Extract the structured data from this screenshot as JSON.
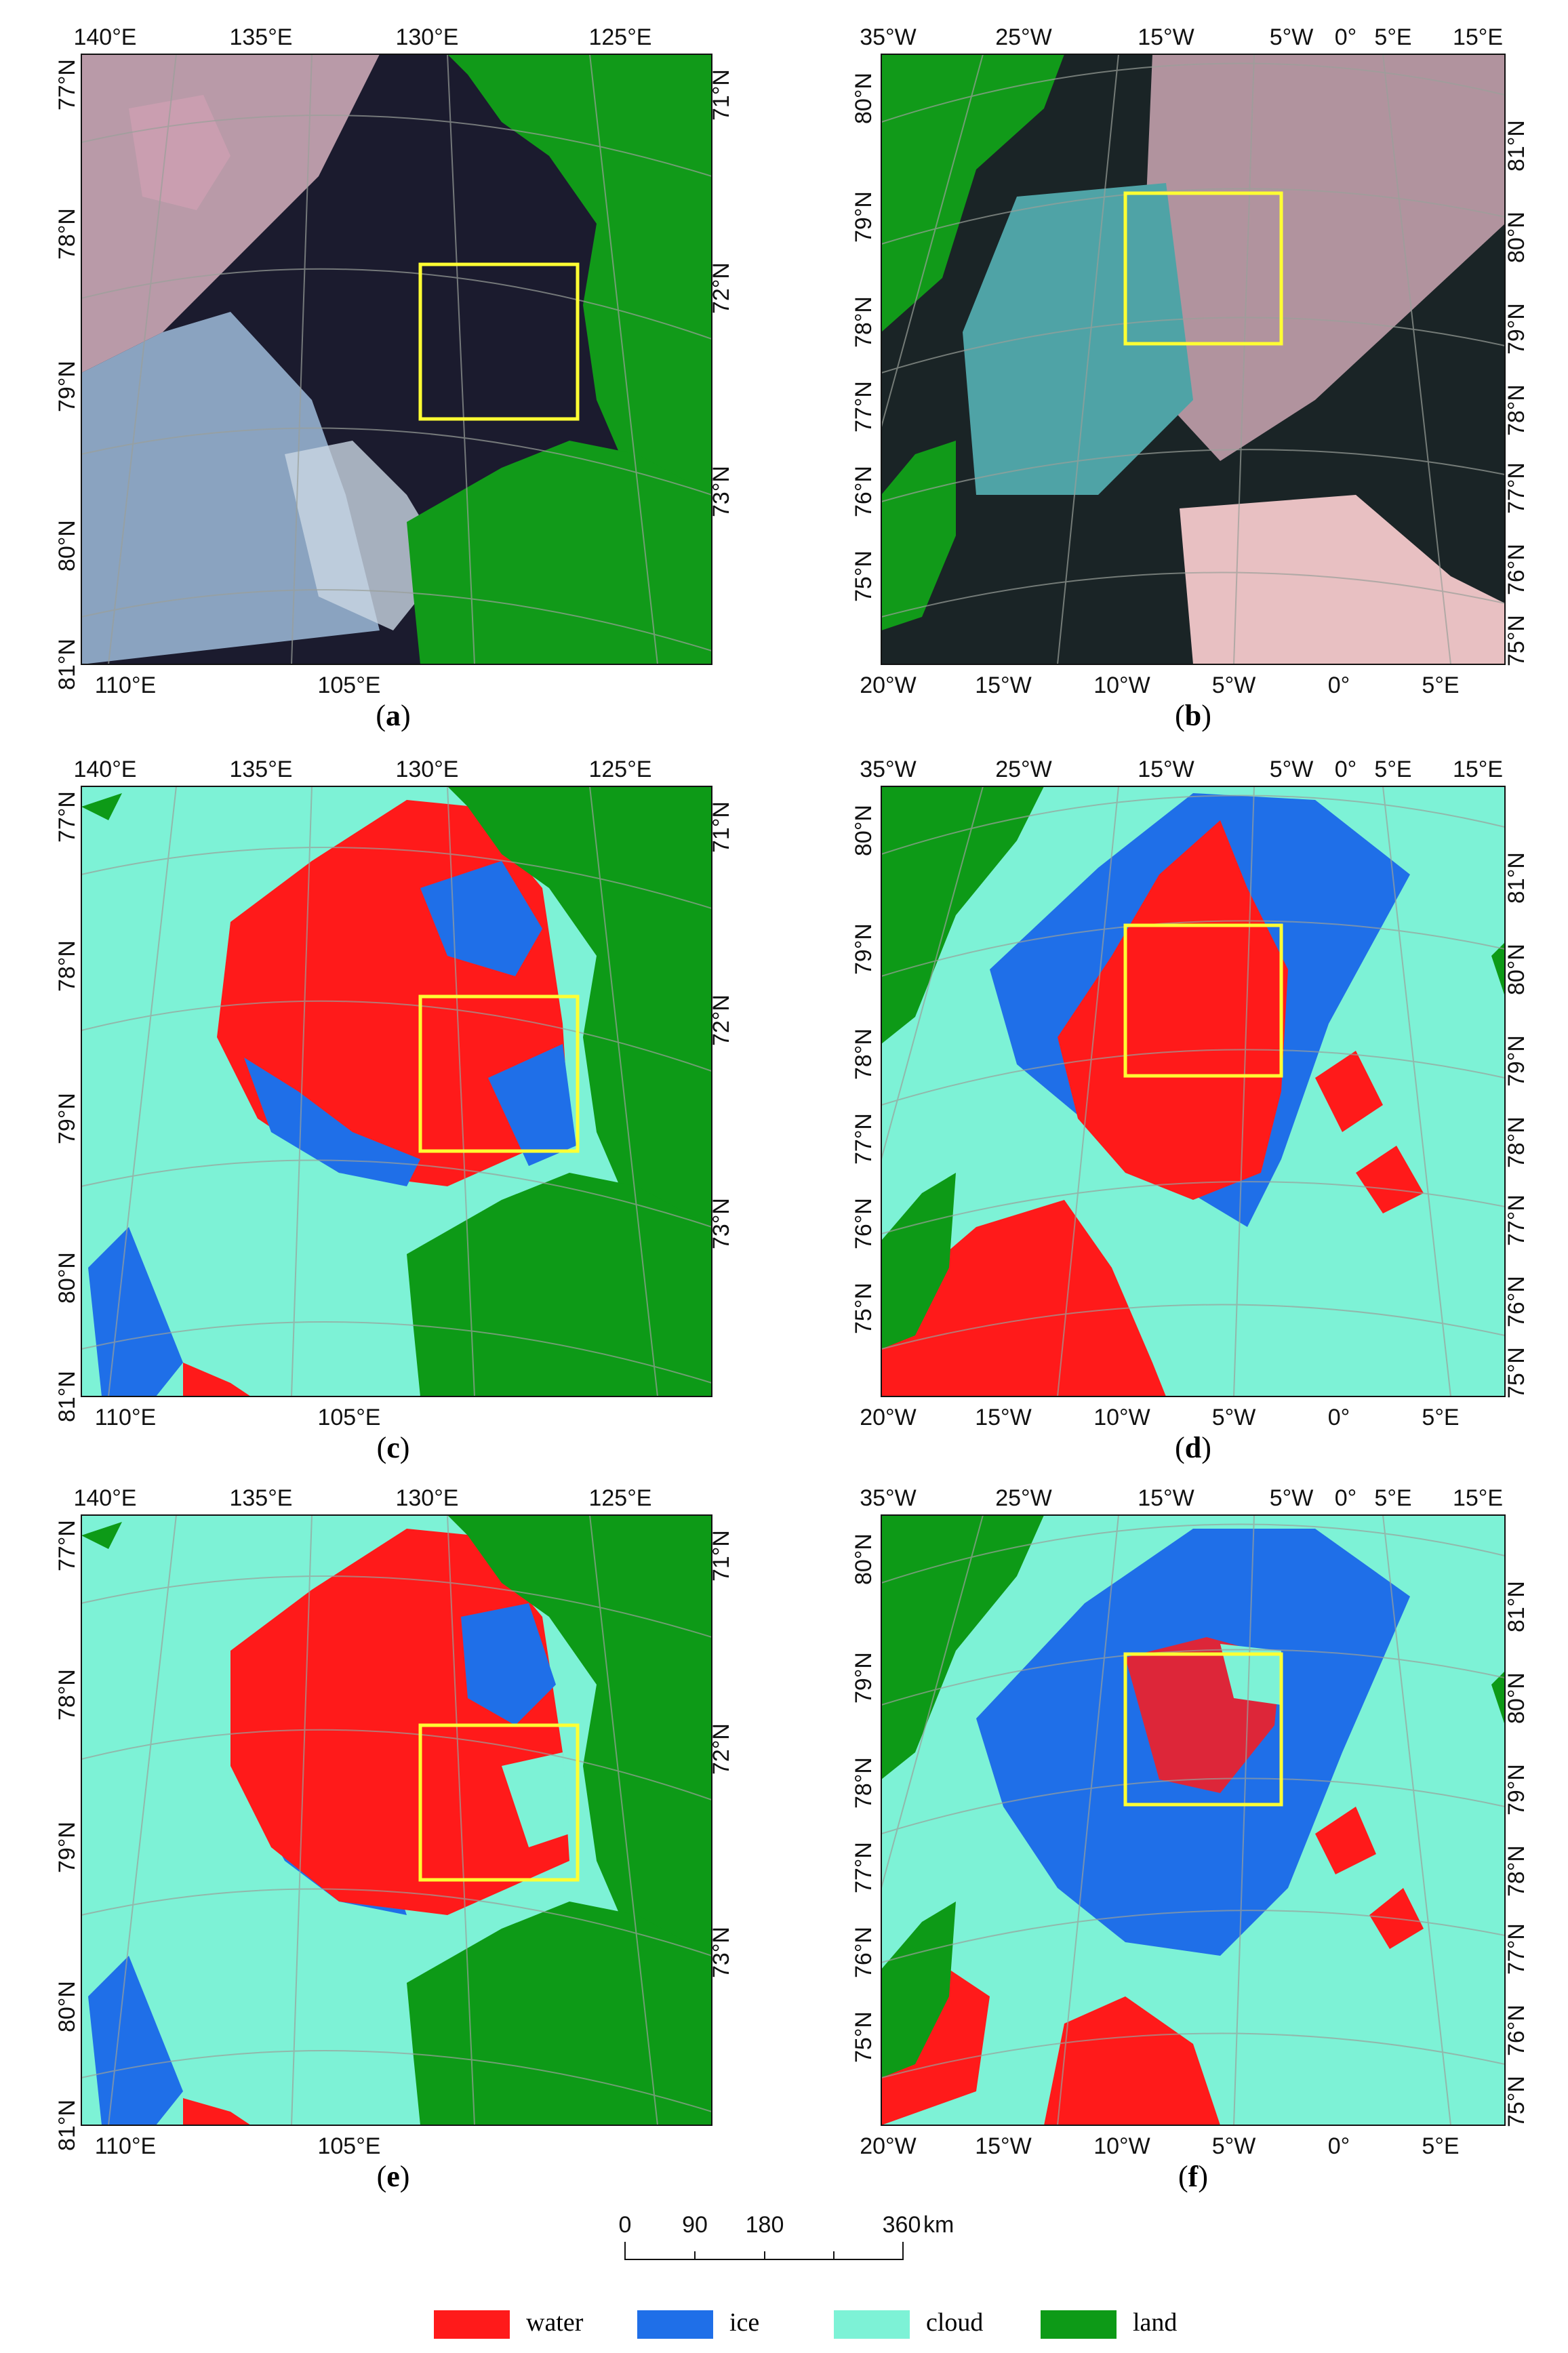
{
  "colors": {
    "water": "#ff1a1a",
    "ice": "#1f6fe8",
    "cloud": "#7df2d6",
    "land": "#0d9a17",
    "box": "#ffff33",
    "grid": "#9aa09a"
  },
  "panels": [
    {
      "id": "a",
      "kind": "rgb",
      "region": "laptev",
      "caption_letter": "a",
      "caption_open": "(",
      "caption_close": ")"
    },
    {
      "id": "b",
      "kind": "rgb",
      "region": "fram",
      "caption_letter": "b",
      "caption_open": "(",
      "caption_close": ")"
    },
    {
      "id": "c",
      "kind": "class",
      "region": "laptev",
      "caption_letter": "c",
      "caption_open": "(",
      "caption_close": ")"
    },
    {
      "id": "d",
      "kind": "class",
      "region": "fram",
      "caption_letter": "d",
      "caption_open": "(",
      "caption_close": ")"
    },
    {
      "id": "e",
      "kind": "class",
      "region": "laptev",
      "caption_letter": "e",
      "caption_open": "(",
      "caption_close": ")"
    },
    {
      "id": "f",
      "kind": "class",
      "region": "fram",
      "caption_letter": "f",
      "caption_open": "(",
      "caption_close": ")"
    }
  ],
  "axes": {
    "laptev": {
      "top": [
        "140°E",
        "135°E",
        "130°E",
        "125°E"
      ],
      "bottom": [
        "110°E",
        "105°E"
      ],
      "left": [
        "77°N",
        "78°N",
        "79°N",
        "80°N",
        "81°N"
      ],
      "right": [
        "71°N",
        "72°N",
        "73°N"
      ]
    },
    "fram": {
      "top": [
        "35°W",
        "25°W",
        "15°W",
        "5°W",
        "0°",
        "5°E",
        "15°E"
      ],
      "bottom": [
        "20°W",
        "15°W",
        "10°W",
        "5°W",
        "0°",
        "5°E"
      ],
      "left": [
        "80°N",
        "79°N",
        "78°N",
        "77°N",
        "76°N",
        "75°N"
      ],
      "right": [
        "81°N",
        "80°N",
        "79°N",
        "78°N",
        "77°N",
        "76°N",
        "75°N"
      ]
    }
  },
  "scalebar": {
    "ticks": [
      "0",
      "90",
      "180",
      "360"
    ],
    "unit": "km"
  },
  "legend": [
    {
      "label": "water",
      "color": "#ff1a1a"
    },
    {
      "label": "ice",
      "color": "#1f6fe8"
    },
    {
      "label": "cloud",
      "color": "#7df2d6"
    },
    {
      "label": "land",
      "color": "#0d9a17"
    }
  ]
}
